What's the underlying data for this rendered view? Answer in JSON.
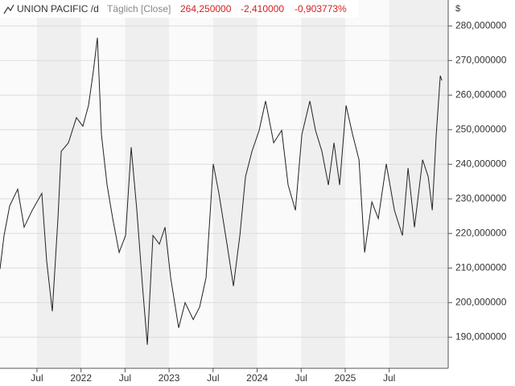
{
  "chart_data": {
    "type": "line",
    "title": "UNION PACIFIC /d",
    "subtitle": "Täglich [Close]",
    "last_value": "264,250000",
    "change": "-2,410000",
    "change_percent": "-0,903773%",
    "y_unit": "$",
    "grid": true,
    "series": [
      {
        "name": "UNION PACIFIC",
        "color": "#222222",
        "x": [
          2021.08,
          2021.126,
          2021.19,
          2021.281,
          2021.354,
          2021.446,
          2021.555,
          2021.61,
          2021.674,
          2021.738,
          2021.775,
          2021.857,
          2021.948,
          2022.021,
          2022.085,
          2022.14,
          2022.186,
          2022.232,
          2022.296,
          2022.36,
          2022.433,
          2022.506,
          2022.57,
          2022.634,
          2022.698,
          2022.753,
          2022.817,
          2022.89,
          2022.954,
          2023.018,
          2023.109,
          2023.182,
          2023.274,
          2023.347,
          2023.42,
          2023.502,
          2023.566,
          2023.658,
          2023.731,
          2023.804,
          2023.868,
          2023.941,
          2024.023,
          2024.096,
          2024.188,
          2024.279,
          2024.352,
          2024.435,
          2024.508,
          2024.599,
          2024.663,
          2024.736,
          2024.809,
          2024.873,
          2024.937,
          2025.01,
          2025.084,
          2025.157,
          2025.221,
          2025.303,
          2025.376,
          2025.467,
          2025.559,
          2025.65,
          2025.714,
          2025.787,
          2025.879,
          2025.943,
          2025.989,
          2026.034,
          2026.08,
          2026.098
        ],
        "values": [
          209.7,
          219.4,
          228,
          232.8,
          221.8,
          226.7,
          231.6,
          212,
          197.5,
          224.3,
          243.7,
          246.2,
          253.5,
          251,
          257,
          266.9,
          276.6,
          248.6,
          234,
          224.3,
          214.5,
          219.4,
          244.9,
          226.7,
          204.8,
          187.8,
          219.4,
          216.9,
          221.8,
          207.2,
          192.7,
          200,
          195.1,
          198.7,
          207.2,
          240.1,
          231.6,
          216.9,
          204.8,
          219.4,
          236.4,
          243.7,
          249.8,
          258.3,
          246.2,
          249.8,
          234,
          226.7,
          248.6,
          258.3,
          249.8,
          243.7,
          234,
          246.2,
          234,
          257,
          248.6,
          241.3,
          214.5,
          229.1,
          224.3,
          240.1,
          226.7,
          219.4,
          238.9,
          221.8,
          241.3,
          236.4,
          226.7,
          248.6,
          265.6,
          264.25
        ]
      }
    ],
    "xlim": [
      2021.08,
      2026.17
    ],
    "xticks": [
      {
        "value": 2021.5,
        "label": "Jul"
      },
      2022,
      {
        "value": 2022.5,
        "label": "Jul"
      },
      2023,
      {
        "value": 2023.5,
        "label": "Jul"
      },
      2024,
      {
        "value": 2024.5,
        "label": "Jul"
      },
      2025,
      {
        "value": 2025.5,
        "label": "Jul"
      }
    ],
    "ylim": [
      181,
      287.5
    ],
    "yticks": [
      {
        "value": 190,
        "label": "190,000000"
      },
      {
        "value": 200,
        "label": "200,000000"
      },
      {
        "value": 210,
        "label": "210,000000"
      },
      {
        "value": 220,
        "label": "220,000000"
      },
      {
        "value": 230,
        "label": "230,000000"
      },
      {
        "value": 240,
        "label": "240,000000"
      },
      {
        "value": 250,
        "label": "250,000000"
      },
      {
        "value": 260,
        "label": "260,000000"
      },
      {
        "value": 270,
        "label": "270,000000"
      },
      {
        "value": 280,
        "label": "280,000000"
      }
    ]
  }
}
